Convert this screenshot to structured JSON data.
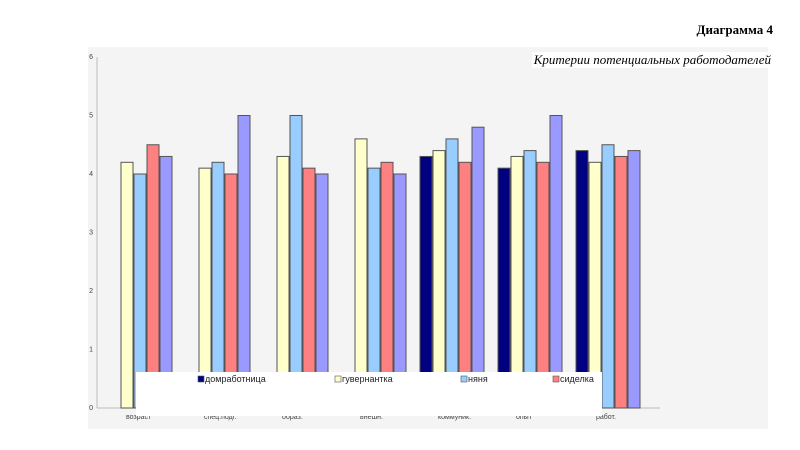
{
  "header": {
    "title": "Диаграмма 4",
    "subtitle": "Критерии потенциальных работодателей"
  },
  "chart_data": {
    "type": "bar",
    "title": "Критерии потенциальных работодателей",
    "categories": [
      "возраст",
      "спец.подг.",
      "образ.",
      "внешн.",
      "коммуник.",
      "опыт",
      "работ."
    ],
    "ylim": [
      0,
      6
    ],
    "yticks": [
      "0",
      "1",
      "2",
      "3",
      "4",
      "5",
      "6"
    ],
    "grid": false,
    "legend_position": "bottom",
    "series": [
      {
        "name": "домработница",
        "color": "#000080",
        "values": [
          null,
          null,
          null,
          null,
          4.3,
          4.1,
          4.4
        ]
      },
      {
        "name": "гувернантка",
        "color": "#ffffcc",
        "values": [
          4.2,
          4.1,
          4.3,
          4.6,
          4.4,
          4.3,
          4.2
        ]
      },
      {
        "name": "няня",
        "color": "#99ccff",
        "values": [
          4.0,
          4.2,
          5.0,
          4.1,
          4.6,
          4.4,
          4.5
        ]
      },
      {
        "name": "сиделка",
        "color": "#ff8080",
        "values": [
          4.5,
          4.0,
          4.1,
          4.2,
          4.2,
          4.2,
          4.3
        ]
      },
      {
        "name": "",
        "color": "#9999ff",
        "values": [
          4.3,
          5.0,
          4.0,
          4.0,
          4.8,
          5.0,
          4.4
        ]
      }
    ]
  }
}
